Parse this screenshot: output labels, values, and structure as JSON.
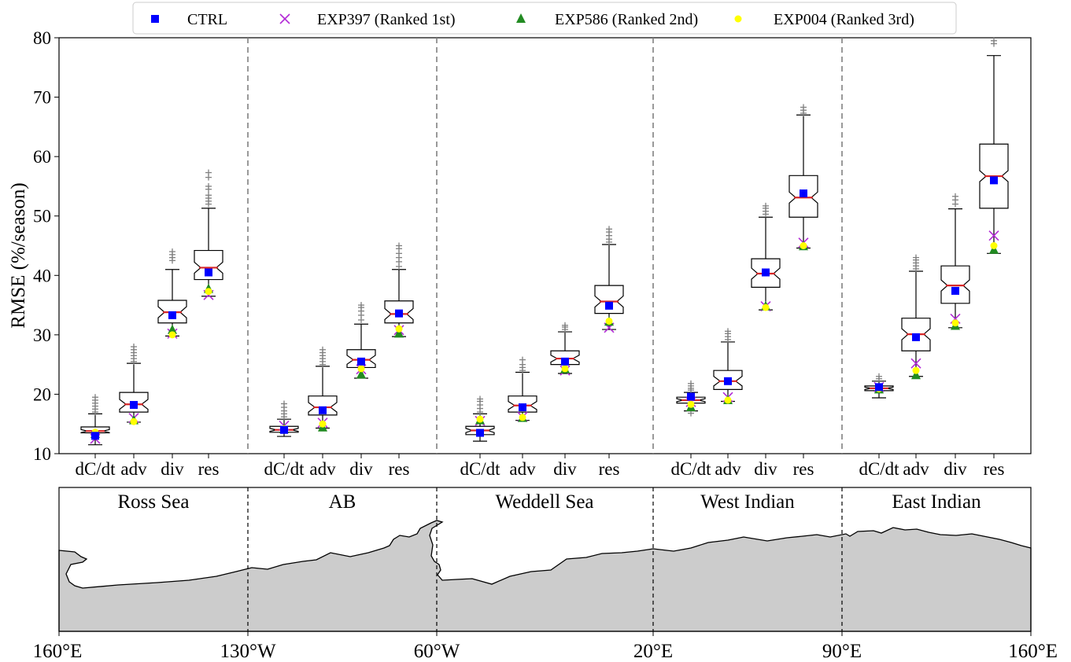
{
  "chart_data": {
    "type": "box",
    "ylabel": "RMSE (%/season)",
    "ylim": [
      10,
      80
    ],
    "yticks": [
      "10",
      "20",
      "30",
      "40",
      "50",
      "60",
      "70",
      "80"
    ],
    "categories": [
      "dC/dt",
      "adv",
      "div",
      "res"
    ],
    "legend": [
      {
        "name": "CTRL",
        "marker": "square",
        "color": "#0000ff"
      },
      {
        "name": "EXP397 (Ranked 1st)",
        "marker": "x",
        "color": "#b22ad6"
      },
      {
        "name": "EXP586 (Ranked 2nd)",
        "marker": "triangle",
        "color": "#228b22"
      },
      {
        "name": "EXP004 (Ranked 3rd)",
        "marker": "circle",
        "color": "#ffff00"
      }
    ],
    "legend_placement": "top-center",
    "regions": [
      {
        "name": "Ross Sea",
        "boxes": [
          {
            "q1": 13.5,
            "med": 13.8,
            "q3": 14.5,
            "wlo": 11.5,
            "whi": 16.7,
            "flo": [],
            "fhi": [
              17.0,
              17.5,
              18.0,
              18.5,
              19.0,
              19.5
            ],
            "ctrl": 13.0,
            "e1": 12.5,
            "e2": 13.3,
            "e3": 13.6
          },
          {
            "q1": 17.0,
            "med": 18.3,
            "q3": 20.3,
            "wlo": 15.3,
            "whi": 25.2,
            "flo": [],
            "fhi": [
              25.5,
              26.0,
              26.5,
              27.0,
              27.5,
              28.0
            ],
            "ctrl": 18.2,
            "e1": 16.0,
            "e2": 15.6,
            "e3": 15.4
          },
          {
            "q1": 32.0,
            "med": 33.8,
            "q3": 35.8,
            "wlo": 29.8,
            "whi": 41.0,
            "flo": [],
            "fhi": [
              42.5,
              43.0,
              43.5,
              44.0
            ],
            "ctrl": 33.3,
            "e1": 30.2,
            "e2": 30.8,
            "e3": 30.0
          },
          {
            "q1": 39.3,
            "med": 41.3,
            "q3": 44.2,
            "wlo": 36.5,
            "whi": 51.3,
            "flo": [],
            "fhi": [
              52.0,
              52.5,
              53.0,
              53.5,
              54.5,
              55.0,
              56.5,
              57.3
            ],
            "ctrl": 40.5,
            "e1": 36.7,
            "e2": 37.7,
            "e3": 37.3
          }
        ]
      },
      {
        "name": "AB",
        "boxes": [
          {
            "q1": 13.6,
            "med": 14.0,
            "q3": 14.6,
            "wlo": 12.9,
            "whi": 15.8,
            "flo": [],
            "fhi": [
              16.2,
              16.7,
              17.2,
              17.8,
              18.4
            ],
            "ctrl": 14.0,
            "e1": 14.7,
            "e2": 14.1,
            "e3": 14.2
          },
          {
            "q1": 16.5,
            "med": 17.8,
            "q3": 19.7,
            "wlo": 14.3,
            "whi": 24.7,
            "flo": [],
            "fhi": [
              25.0,
              25.5,
              26.0,
              26.5,
              27.0,
              27.5
            ],
            "ctrl": 17.3,
            "e1": 15.2,
            "e2": 14.4,
            "e3": 15.0
          },
          {
            "q1": 24.5,
            "med": 25.8,
            "q3": 27.5,
            "wlo": 22.7,
            "whi": 31.8,
            "flo": [],
            "fhi": [
              32.5,
              33.3,
              34.0,
              34.6,
              35.0
            ],
            "ctrl": 25.5,
            "e1": 24.2,
            "e2": 23.3,
            "e3": 24.3
          },
          {
            "q1": 32.0,
            "med": 33.5,
            "q3": 35.7,
            "wlo": 29.7,
            "whi": 41.0,
            "flo": [],
            "fhi": [
              41.5,
              42.3,
              43.0,
              43.7,
              44.5,
              45.0
            ],
            "ctrl": 33.6,
            "e1": 30.8,
            "e2": 30.2,
            "e3": 31.0
          }
        ]
      },
      {
        "name": "Weddell Sea",
        "boxes": [
          {
            "q1": 13.2,
            "med": 13.9,
            "q3": 14.6,
            "wlo": 12.1,
            "whi": 16.7,
            "flo": [],
            "fhi": [
              17.0,
              17.6,
              18.2,
              18.8,
              19.2
            ],
            "ctrl": 13.5,
            "e1": 15.5,
            "e2": 15.6,
            "e3": 15.8
          },
          {
            "q1": 17.0,
            "med": 18.1,
            "q3": 19.7,
            "wlo": 15.6,
            "whi": 23.7,
            "flo": [],
            "fhi": [
              24.0,
              24.5,
              25.0,
              25.8
            ],
            "ctrl": 17.8,
            "e1": 16.2,
            "e2": 16.0,
            "e3": 16.1
          },
          {
            "q1": 25.0,
            "med": 26.0,
            "q3": 27.3,
            "wlo": 23.5,
            "whi": 30.5,
            "flo": [],
            "fhi": [
              30.9,
              31.3,
              31.6
            ],
            "ctrl": 25.5,
            "e1": 24.0,
            "e2": 24.2,
            "e3": 24.3
          },
          {
            "q1": 33.6,
            "med": 35.6,
            "q3": 38.3,
            "wlo": 30.9,
            "whi": 45.2,
            "flo": [],
            "fhi": [
              45.6,
              46.1,
              46.7,
              47.3,
              47.8
            ],
            "ctrl": 34.9,
            "e1": 31.2,
            "e2": 32.2,
            "e3": 32.3
          }
        ]
      },
      {
        "name": "West Indian",
        "boxes": [
          {
            "q1": 18.5,
            "med": 19.0,
            "q3": 19.5,
            "wlo": 17.2,
            "whi": 20.3,
            "flo": [
              16.8
            ],
            "fhi": [
              20.7,
              21.0,
              21.4,
              21.8
            ],
            "ctrl": 19.6,
            "e1": 18.7,
            "e2": 17.8,
            "e3": 18.3
          },
          {
            "q1": 20.8,
            "med": 22.2,
            "q3": 24.0,
            "wlo": 18.8,
            "whi": 28.8,
            "flo": [],
            "fhi": [
              29.2,
              29.7,
              30.2,
              30.6
            ],
            "ctrl": 22.2,
            "e1": 19.5,
            "e2": 19.0,
            "e3": 19.0
          },
          {
            "q1": 38.0,
            "med": 40.3,
            "q3": 42.8,
            "wlo": 34.2,
            "whi": 49.8,
            "flo": [],
            "fhi": [
              50.3,
              50.8,
              51.3,
              51.7
            ],
            "ctrl": 40.5,
            "e1": 34.8,
            "e2": 34.8,
            "e3": 34.6
          },
          {
            "q1": 49.8,
            "med": 53.1,
            "q3": 56.8,
            "wlo": 44.6,
            "whi": 67.0,
            "flo": [],
            "fhi": [
              67.3,
              67.8,
              68.3
            ],
            "ctrl": 53.8,
            "e1": 45.5,
            "e2": 44.9,
            "e3": 45.0
          }
        ]
      },
      {
        "name": "East Indian",
        "boxes": [
          {
            "q1": 20.6,
            "med": 21.0,
            "q3": 21.4,
            "wlo": 19.4,
            "whi": 22.2,
            "flo": [],
            "fhi": [
              22.6,
              23.0
            ],
            "ctrl": 21.2,
            "e1": 21.2,
            "e2": 20.8,
            "e3": 20.9
          },
          {
            "q1": 27.3,
            "med": 30.1,
            "q3": 32.8,
            "wlo": 23.0,
            "whi": 40.7,
            "flo": [],
            "fhi": [
              41.1,
              41.6,
              42.1,
              42.6,
              43.0
            ],
            "ctrl": 29.6,
            "e1": 25.2,
            "e2": 23.2,
            "e3": 24.0
          },
          {
            "q1": 35.3,
            "med": 38.3,
            "q3": 41.6,
            "wlo": 31.2,
            "whi": 51.2,
            "flo": [],
            "fhi": [
              52.0,
              52.7,
              53.3
            ],
            "ctrl": 37.4,
            "e1": 32.7,
            "e2": 31.5,
            "e3": 32.0
          },
          {
            "q1": 51.3,
            "med": 56.7,
            "q3": 62.1,
            "wlo": 43.7,
            "whi": 77.0,
            "flo": [],
            "fhi": [
              79.0,
              79.5
            ],
            "ctrl": 56.0,
            "e1": 46.7,
            "e2": 44.3,
            "e3": 45.0
          }
        ]
      }
    ],
    "map": {
      "xticks": [
        "160°E",
        "130°W",
        "60°W",
        "20°E",
        "90°E",
        "160°E"
      ],
      "land_color": "#cccccc"
    },
    "colors": {
      "median": "#d62728",
      "flier": "#808080",
      "separator": "#808080"
    }
  }
}
